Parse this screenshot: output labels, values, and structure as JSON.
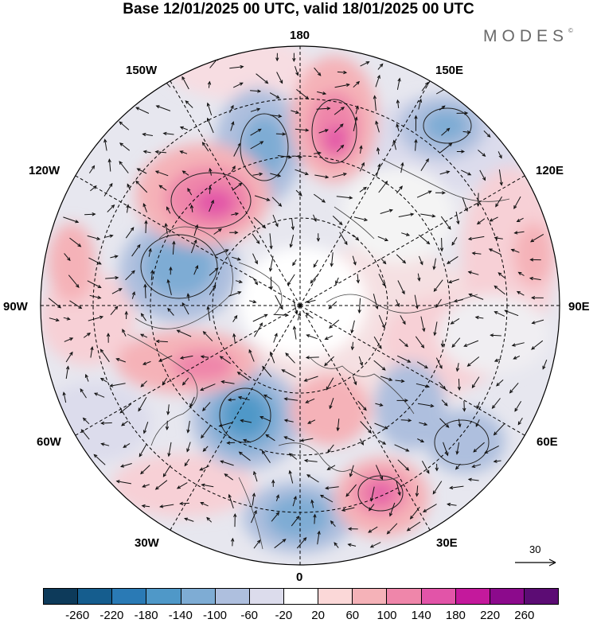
{
  "title": "Base 12/01/2025 00 UTC, valid 18/01/2025 00 UTC",
  "brand": "MODES",
  "brand_mark": "©",
  "longitude_labels": {
    "top": "180",
    "top_left": "150W",
    "top_right": "150E",
    "upper_left": "120W",
    "upper_right": "120E",
    "left": "90W",
    "right": "90E",
    "lower_left": "60W",
    "lower_right": "60E",
    "bottom_left": "30W",
    "bottom_right": "30E",
    "bottom": "0"
  },
  "reference_vector_label": "30",
  "colorbar": {
    "colors": [
      "#0d3a5a",
      "#155d8e",
      "#2a7ab5",
      "#4f98c8",
      "#7eacd4",
      "#aebfde",
      "#dcdcec",
      "#ffffff",
      "#fbd8d8",
      "#f5b2b8",
      "#ef86aa",
      "#e254a8",
      "#c4199c",
      "#8c0a8c",
      "#5c0c74"
    ],
    "ticks": [
      "-260",
      "-220",
      "-180",
      "-140",
      "-100",
      "-60",
      "-20",
      "20",
      "60",
      "100",
      "140",
      "180",
      "220",
      "260"
    ]
  }
}
